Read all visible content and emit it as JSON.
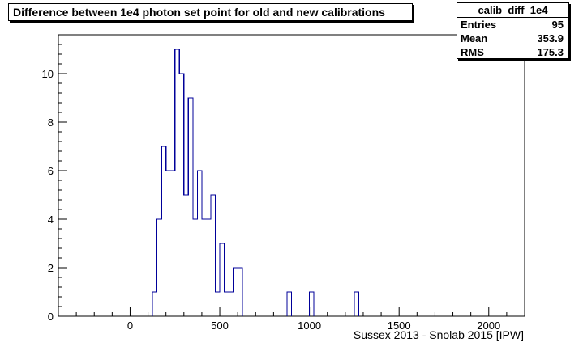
{
  "chart_data": {
    "type": "histogram",
    "title": "Difference between 1e4 photon set point for old and new calibrations",
    "xlabel": "Sussex 2013 - Snolab 2015 [IPW]",
    "ylabel": "",
    "xlim": [
      -400,
      2200
    ],
    "ylim": [
      0,
      11.6
    ],
    "bin_width": 25,
    "x_ticks": [
      0,
      500,
      1000,
      1500,
      2000
    ],
    "y_ticks": [
      0,
      2,
      4,
      6,
      8,
      10
    ],
    "line_color": "#000099",
    "bins": [
      {
        "x": 125,
        "count": 1
      },
      {
        "x": 150,
        "count": 4
      },
      {
        "x": 175,
        "count": 7
      },
      {
        "x": 200,
        "count": 6
      },
      {
        "x": 225,
        "count": 6
      },
      {
        "x": 250,
        "count": 11
      },
      {
        "x": 275,
        "count": 10
      },
      {
        "x": 300,
        "count": 5
      },
      {
        "x": 325,
        "count": 9
      },
      {
        "x": 350,
        "count": 4
      },
      {
        "x": 375,
        "count": 6
      },
      {
        "x": 400,
        "count": 4
      },
      {
        "x": 425,
        "count": 4
      },
      {
        "x": 450,
        "count": 5
      },
      {
        "x": 475,
        "count": 1
      },
      {
        "x": 500,
        "count": 3
      },
      {
        "x": 525,
        "count": 1
      },
      {
        "x": 550,
        "count": 1
      },
      {
        "x": 575,
        "count": 2
      },
      {
        "x": 600,
        "count": 2
      },
      {
        "x": 875,
        "count": 1
      },
      {
        "x": 1000,
        "count": 1
      },
      {
        "x": 1250,
        "count": 1
      }
    ],
    "stats": {
      "name": "calib_diff_1e4",
      "entries_label": "Entries",
      "entries": "95",
      "mean_label": "Mean",
      "mean": "353.9",
      "rms_label": "RMS",
      "rms": "175.3"
    }
  }
}
